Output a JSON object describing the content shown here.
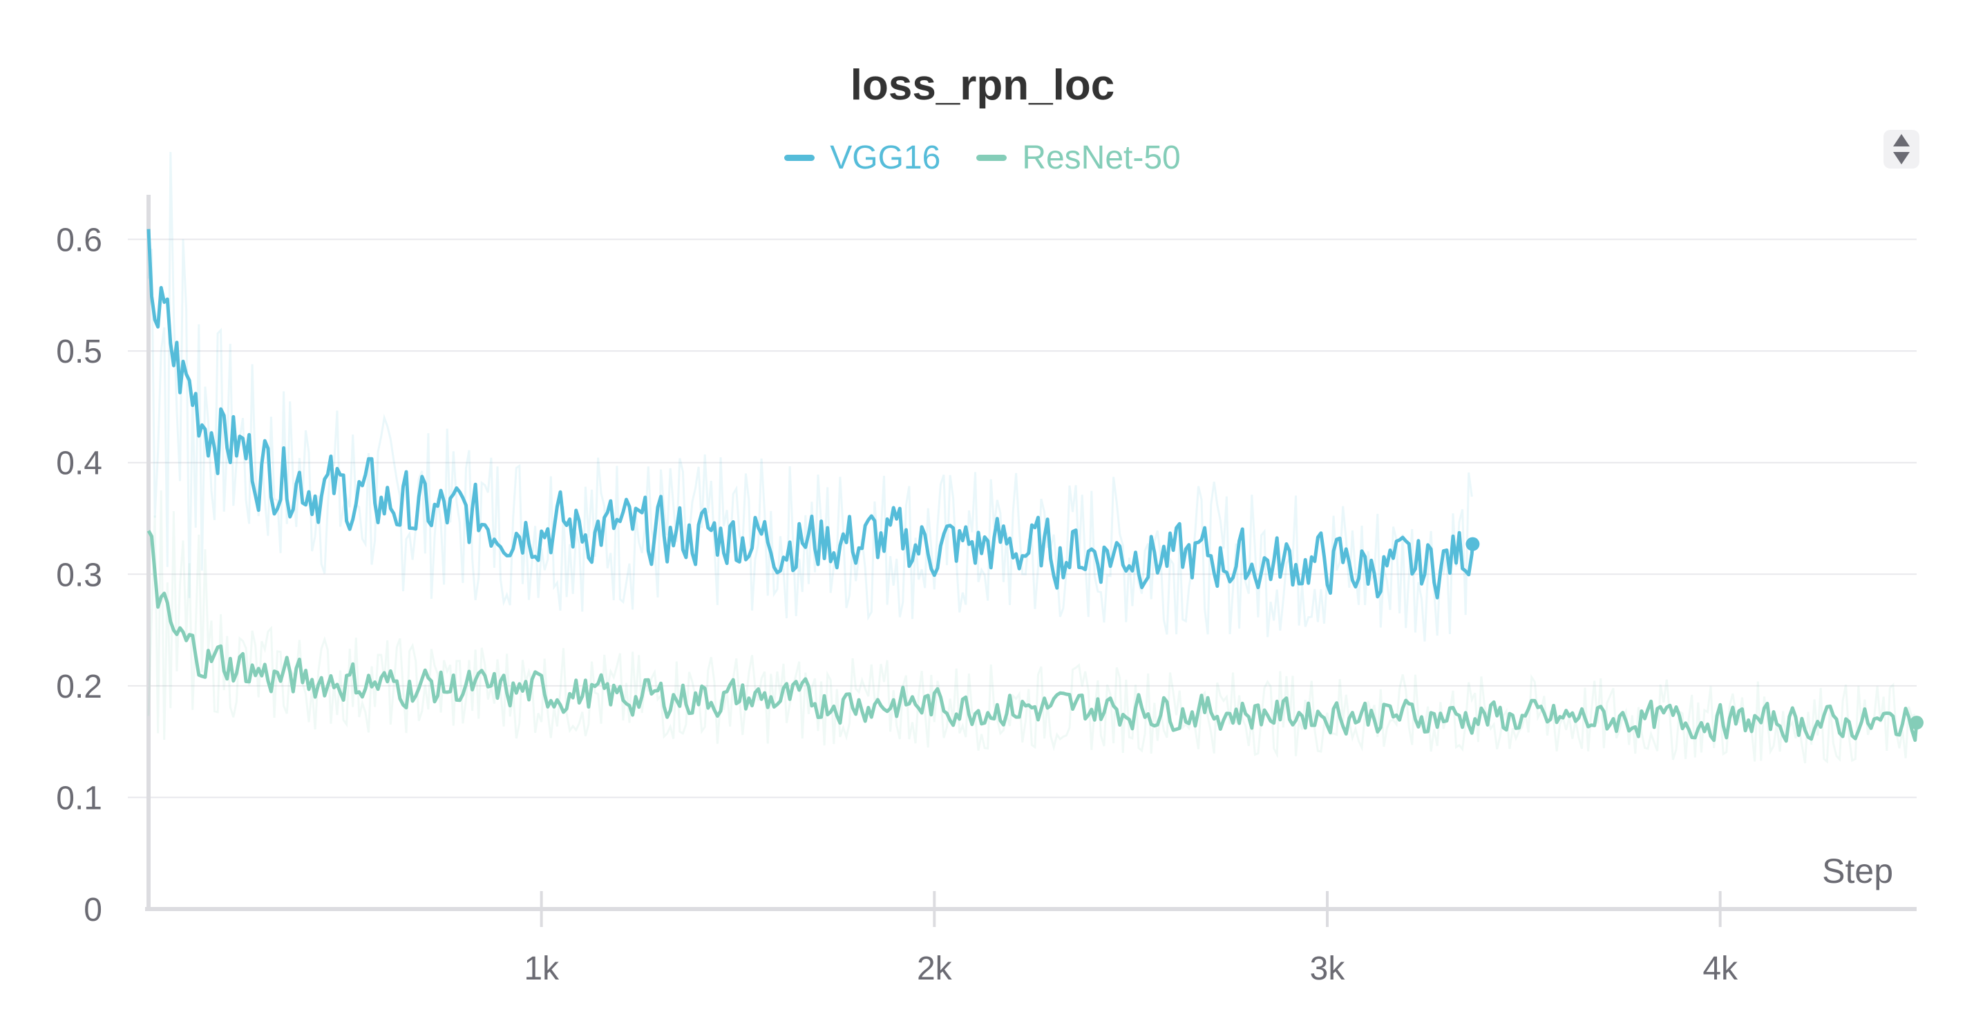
{
  "chart_data": {
    "type": "line",
    "title": "loss_rpn_loc",
    "xlabel": "Step",
    "ylabel": "",
    "xlim": [
      0,
      4500
    ],
    "ylim": [
      0,
      0.635
    ],
    "x_ticks": [
      1000,
      2000,
      3000,
      4000
    ],
    "x_tick_labels": [
      "1k",
      "2k",
      "3k",
      "4k"
    ],
    "y_ticks": [
      0,
      0.1,
      0.2,
      0.3,
      0.4,
      0.5,
      0.6
    ],
    "y_tick_labels": [
      "0",
      "0.1",
      "0.2",
      "0.3",
      "0.4",
      "0.5",
      "0.6"
    ],
    "grid": true,
    "legend_position": "top-center",
    "series": [
      {
        "name": "VGG16",
        "color": "#55bcd9",
        "x": [
          0,
          50,
          100,
          150,
          200,
          250,
          300,
          350,
          400,
          450,
          500,
          550,
          600,
          650,
          700,
          750,
          800,
          850,
          900,
          950,
          1000,
          1100,
          1200,
          1300,
          1400,
          1500,
          1600,
          1700,
          1800,
          1900,
          2000,
          2100,
          2200,
          2300,
          2400,
          2500,
          2600,
          2700,
          2800,
          2900,
          3000,
          3100,
          3200,
          3300,
          3370
        ],
        "y": [
          0.57,
          0.505,
          0.465,
          0.44,
          0.425,
          0.405,
          0.395,
          0.39,
          0.385,
          0.375,
          0.37,
          0.37,
          0.365,
          0.36,
          0.355,
          0.355,
          0.35,
          0.35,
          0.345,
          0.345,
          0.345,
          0.34,
          0.34,
          0.335,
          0.335,
          0.335,
          0.33,
          0.33,
          0.33,
          0.33,
          0.325,
          0.325,
          0.325,
          0.32,
          0.32,
          0.32,
          0.315,
          0.315,
          0.31,
          0.31,
          0.31,
          0.305,
          0.305,
          0.31,
          0.327
        ]
      },
      {
        "name": "ResNet-50",
        "color": "#84cdb8",
        "x": [
          0,
          50,
          100,
          150,
          200,
          250,
          300,
          400,
          500,
          600,
          700,
          800,
          900,
          1000,
          1200,
          1400,
          1600,
          1800,
          2000,
          2200,
          2400,
          2600,
          2800,
          3000,
          3200,
          3400,
          3600,
          3800,
          4000,
          4200,
          4400,
          4500
        ],
        "y": [
          0.32,
          0.25,
          0.235,
          0.225,
          0.22,
          0.215,
          0.21,
          0.205,
          0.205,
          0.2,
          0.2,
          0.198,
          0.195,
          0.195,
          0.19,
          0.19,
          0.188,
          0.185,
          0.183,
          0.18,
          0.18,
          0.178,
          0.176,
          0.175,
          0.173,
          0.172,
          0.17,
          0.17,
          0.168,
          0.167,
          0.166,
          0.167
        ]
      }
    ]
  }
}
